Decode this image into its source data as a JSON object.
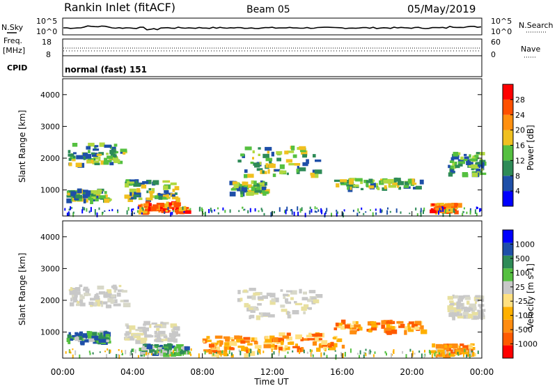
{
  "header": {
    "station": "Rankin Inlet (fitACF)",
    "beam": "Beam 05",
    "date": "05/May/2019"
  },
  "strip_top": {
    "left_label": "N.Sky",
    "right_label": "N.Search",
    "left_ticks": [
      "10^5",
      "10^0"
    ],
    "right_ticks": [
      "10^5",
      "10^0"
    ]
  },
  "strip_freq": {
    "left_label_1": "Freq.",
    "left_label_2": "[MHz]",
    "right_label": "Nave",
    "left_ticks": [
      "18",
      "8"
    ],
    "right_ticks": [
      "60",
      "0"
    ]
  },
  "cpid": {
    "label": "CPID",
    "value": "normal (fast) 151"
  },
  "chart_data": [
    {
      "type": "heatmap",
      "panel": "power",
      "ylabel": "Slant Range [km]",
      "ylim": [
        180,
        4500
      ],
      "yticks": [
        "4000",
        "3000",
        "2000",
        "1000"
      ],
      "colorbar_label": "Power [dB]",
      "colorbar_ticks": [
        "28",
        "24",
        "20",
        "16",
        "12",
        "8",
        "4"
      ],
      "colorbar_colors": [
        "#0000ff",
        "#1e4fa8",
        "#2e8b57",
        "#55c040",
        "#f0c020",
        "#ff9010",
        "#ff5000",
        "#ff0000"
      ],
      "regions": [
        {
          "t0": 0.3,
          "t1": 3.6,
          "r0": 1850,
          "r1": 2500,
          "level": "mid"
        },
        {
          "t0": 0.2,
          "t1": 2.5,
          "r0": 700,
          "r1": 1050,
          "level": "mid"
        },
        {
          "t0": 3.5,
          "t1": 6.5,
          "r0": 750,
          "r1": 1350,
          "level": "mid"
        },
        {
          "t0": 4.3,
          "t1": 7.0,
          "r0": 350,
          "r1": 650,
          "level": "high"
        },
        {
          "t0": 10.0,
          "t1": 14.5,
          "r0": 1500,
          "r1": 2400,
          "level": "mid"
        },
        {
          "t0": 9.5,
          "t1": 11.5,
          "r0": 900,
          "r1": 1300,
          "level": "mid"
        },
        {
          "t0": 15.5,
          "t1": 20.5,
          "r0": 1050,
          "r1": 1400,
          "level": "mid"
        },
        {
          "t0": 21.0,
          "t1": 22.5,
          "r0": 350,
          "r1": 600,
          "level": "high"
        },
        {
          "t0": 22.0,
          "t1": 24.0,
          "r0": 1500,
          "r1": 2200,
          "level": "low"
        }
      ]
    },
    {
      "type": "heatmap",
      "panel": "velocity",
      "ylabel": "Slant Range [km]",
      "xlabel": "Time UT",
      "ylim": [
        180,
        4500
      ],
      "xlim": [
        0,
        24
      ],
      "yticks": [
        "4000",
        "3000",
        "2000",
        "1000"
      ],
      "xticks": [
        "00:00",
        "04:00",
        "08:00",
        "12:00",
        "16:00",
        "20:00",
        "00:00"
      ],
      "colorbar_label": "Velocity [m s-1]",
      "colorbar_ticks": [
        "1000",
        "500",
        "100",
        "25",
        "-25",
        "-100",
        "-500",
        "-1000"
      ],
      "colorbar_colors": [
        "#ff0000",
        "#ff5a00",
        "#ff8c10",
        "#ffb000",
        "#ffe080",
        "#c8c8c8",
        "#55c040",
        "#2e8b57",
        "#1e4fa8",
        "#0000ff"
      ],
      "regions": [
        {
          "t0": 0.3,
          "t1": 3.6,
          "r0": 1850,
          "r1": 2500,
          "level": "zero"
        },
        {
          "t0": 0.2,
          "t1": 2.5,
          "r0": 700,
          "r1": 1050,
          "level": "positive"
        },
        {
          "t0": 3.5,
          "t1": 6.5,
          "r0": 750,
          "r1": 1350,
          "level": "zero"
        },
        {
          "t0": 4.3,
          "t1": 7.0,
          "r0": 350,
          "r1": 650,
          "level": "positive"
        },
        {
          "t0": 8.0,
          "t1": 11.0,
          "r0": 300,
          "r1": 900,
          "level": "negative"
        },
        {
          "t0": 10.0,
          "t1": 14.5,
          "r0": 1500,
          "r1": 2400,
          "level": "zero"
        },
        {
          "t0": 11.5,
          "t1": 16.0,
          "r0": 500,
          "r1": 1000,
          "level": "negative"
        },
        {
          "t0": 15.5,
          "t1": 20.5,
          "r0": 1050,
          "r1": 1400,
          "level": "negative"
        },
        {
          "t0": 21.0,
          "t1": 23.5,
          "r0": 300,
          "r1": 650,
          "level": "negative"
        },
        {
          "t0": 22.0,
          "t1": 24.0,
          "r0": 1500,
          "r1": 2200,
          "level": "zero"
        }
      ]
    }
  ]
}
